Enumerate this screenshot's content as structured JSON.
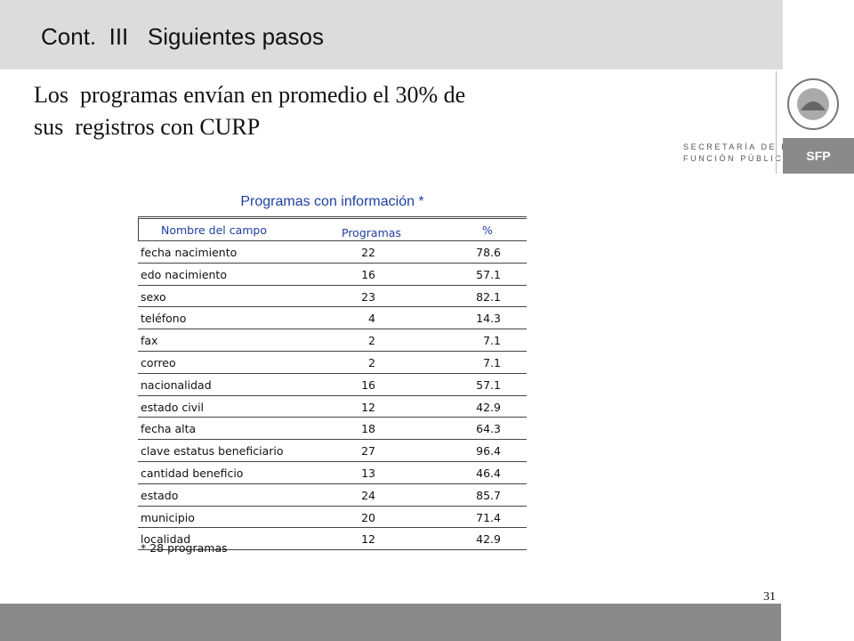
{
  "header": {
    "title": "Cont.  III   Siguientes pasos"
  },
  "body": {
    "lines": [
      "Los  programas envían en promedio el 30% de",
      "sus  registros con CURP"
    ]
  },
  "logo": {
    "line1": "SECRETARÍA DE LA",
    "line2": "FUNCIÓN PÚBLICA",
    "badge": "SFP"
  },
  "table": {
    "title": "Programas con información *",
    "columns": [
      "Nombre del campo",
      "Programas",
      "%"
    ],
    "rows": [
      [
        "fecha nacimiento",
        22,
        78.6
      ],
      [
        "edo nacimiento",
        16,
        57.1
      ],
      [
        "sexo",
        23,
        82.1
      ],
      [
        "teléfono",
        4,
        14.3
      ],
      [
        "fax",
        2,
        7.1
      ],
      [
        "correo",
        2,
        7.1
      ],
      [
        "nacionalidad",
        16,
        57.1
      ],
      [
        "estado civil",
        12,
        42.9
      ],
      [
        "fecha alta",
        18,
        64.3
      ],
      [
        "clave estatus beneficiario",
        27,
        96.4
      ],
      [
        "cantidad beneficio",
        13,
        46.4
      ],
      [
        "estado",
        24,
        85.7
      ],
      [
        "municipio",
        20,
        71.4
      ],
      [
        "localidad",
        12,
        42.9
      ]
    ],
    "footnote": "* 28 programas"
  },
  "footer": {
    "page": "31"
  }
}
